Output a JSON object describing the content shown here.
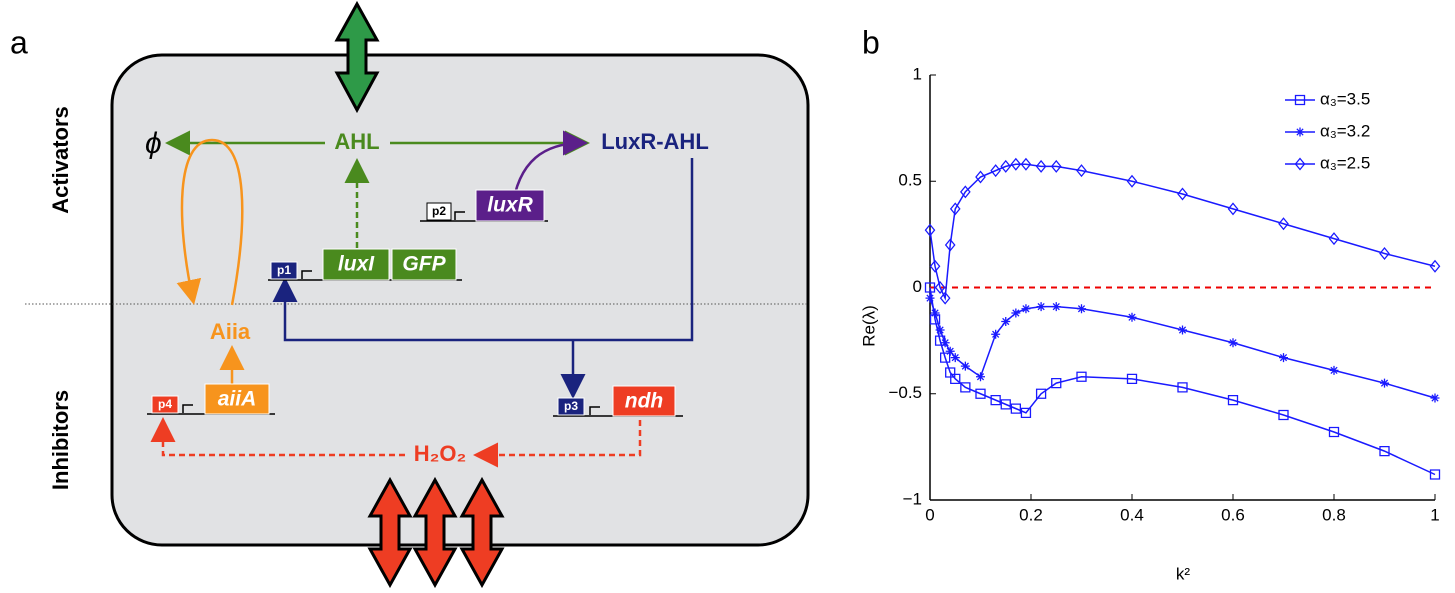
{
  "panel_a": {
    "label": "a",
    "side_labels": [
      "Activators",
      "Inhibitors"
    ],
    "species": {
      "degraded": "ϕ",
      "ahl": "AHL",
      "complex": "LuxR-AHL",
      "aiia": "Aiia",
      "h2o2": "H₂O₂"
    },
    "constructs": {
      "p1": "p1",
      "luxI": "luxI",
      "gfp": "GFP",
      "p2": "p2",
      "luxR": "luxR",
      "p3": "p3",
      "ndh": "ndh",
      "p4": "p4",
      "aiiA": "aiiA"
    }
  },
  "chart_data": {
    "type": "line",
    "panel_label": "b",
    "xlabel": "k²",
    "ylabel": "Re(λ)",
    "x": [
      0,
      0.01,
      0.02,
      0.03,
      0.04,
      0.05,
      0.07,
      0.1,
      0.13,
      0.15,
      0.17,
      0.19,
      0.22,
      0.25,
      0.3,
      0.4,
      0.5,
      0.6,
      0.7,
      0.8,
      0.9,
      1
    ],
    "series": [
      {
        "name": "α₃=3.5",
        "color": "#1a1aff",
        "marker": "square",
        "values": [
          0,
          -0.15,
          -0.25,
          -0.33,
          -0.4,
          -0.43,
          -0.47,
          -0.5,
          -0.53,
          -0.55,
          -0.57,
          -0.59,
          -0.5,
          -0.45,
          -0.42,
          -0.43,
          -0.47,
          -0.53,
          -0.6,
          -0.68,
          -0.77,
          -0.88
        ]
      },
      {
        "name": "α₃=3.2",
        "color": "#1a1aff",
        "marker": "star",
        "values": [
          -0.05,
          -0.12,
          -0.2,
          -0.26,
          -0.3,
          -0.33,
          -0.37,
          -0.42,
          -0.22,
          -0.16,
          -0.12,
          -0.1,
          -0.09,
          -0.09,
          -0.1,
          -0.14,
          -0.2,
          -0.26,
          -0.33,
          -0.39,
          -0.45,
          -0.52
        ]
      },
      {
        "name": "α₃=2.5",
        "color": "#1a1aff",
        "marker": "diamond",
        "values": [
          0.27,
          0.1,
          0,
          -0.05,
          0.2,
          0.37,
          0.45,
          0.52,
          0.55,
          0.57,
          0.58,
          0.58,
          0.57,
          0.57,
          0.55,
          0.5,
          0.44,
          0.37,
          0.3,
          0.23,
          0.16,
          0.1
        ]
      }
    ],
    "hline": 0,
    "hline_color": "#ee0000",
    "xlim": [
      0,
      1
    ],
    "xticks": [
      0,
      0.2,
      0.4,
      0.6,
      0.8,
      1
    ],
    "ylim": [
      -1,
      1
    ],
    "yticks": [
      {
        "value": -1,
        "label": "−1"
      },
      {
        "value": -0.5,
        "label": "−0.5"
      },
      0,
      0.5,
      1
    ],
    "legend": "upper right"
  }
}
